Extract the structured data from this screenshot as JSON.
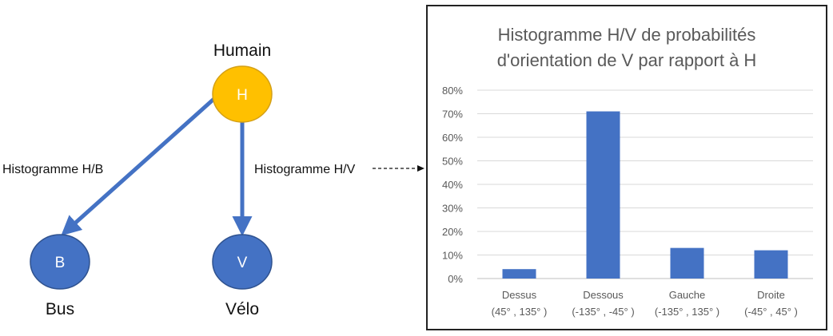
{
  "diagram": {
    "nodes": {
      "human": {
        "letter": "H",
        "label": "Humain",
        "fill": "#ffc000",
        "stroke": "#d4a017"
      },
      "bus": {
        "letter": "B",
        "label": "Bus",
        "fill": "#4472c4",
        "stroke": "#2f528f"
      },
      "velo": {
        "letter": "V",
        "label": "Vélo",
        "fill": "#4472c4",
        "stroke": "#2f528f"
      }
    },
    "edges": {
      "hb": {
        "label": "Histogramme H/B"
      },
      "hv": {
        "label": "Histogramme H/V"
      }
    },
    "edge_color": "#4472c4"
  },
  "chart_data": {
    "type": "bar",
    "title_lines": [
      "Histogramme H/V de probabilités",
      "d'orientation de V par rapport à H"
    ],
    "categories": [
      [
        "Dessus",
        "(45° , 135° )"
      ],
      [
        "Dessous",
        "(-135° , -45° )"
      ],
      [
        "Gauche",
        "(-135° , 135° )"
      ],
      [
        "Droite",
        "(-45° , 45° )"
      ]
    ],
    "values": [
      0.04,
      0.71,
      0.13,
      0.12
    ],
    "ylim": [
      0,
      0.8
    ],
    "yticks": [
      "0%",
      "10%",
      "20%",
      "30%",
      "40%",
      "50%",
      "60%",
      "70%",
      "80%"
    ],
    "grid": true,
    "bar_color": "#4472c4"
  }
}
